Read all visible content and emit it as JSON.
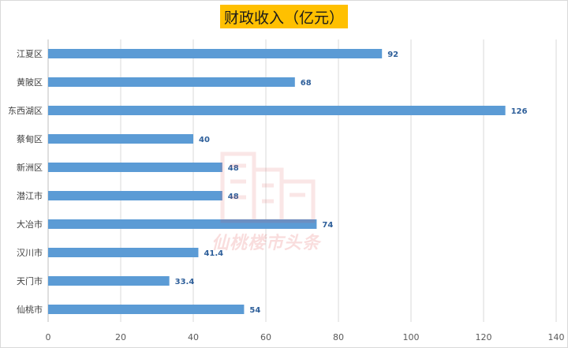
{
  "chart_data": {
    "type": "bar",
    "orientation": "horizontal",
    "title": "财政收入（亿元）",
    "categories": [
      "江夏区",
      "黄陂区",
      "东西湖区",
      "蔡甸区",
      "新洲区",
      "潜江市",
      "大冶市",
      "汉川市",
      "天门市",
      "仙桃市"
    ],
    "values": [
      92,
      68,
      126,
      40,
      48,
      48,
      74,
      41.4,
      33.4,
      54
    ],
    "value_labels": [
      "92",
      "68",
      "126",
      "40",
      "48",
      "48",
      "74",
      "41.4",
      "33.4",
      "54"
    ],
    "xlim": [
      0,
      140
    ],
    "xticks": [
      0,
      20,
      40,
      60,
      80,
      100,
      120,
      140
    ],
    "grid": true,
    "bar_color": "#5b9bd5",
    "title_bg_color": "#ffc000",
    "data_label_color": "#2e5f9a"
  },
  "watermark": {
    "text": "仙桃楼市头条",
    "icon": "building-icon",
    "color": "#e04848"
  }
}
